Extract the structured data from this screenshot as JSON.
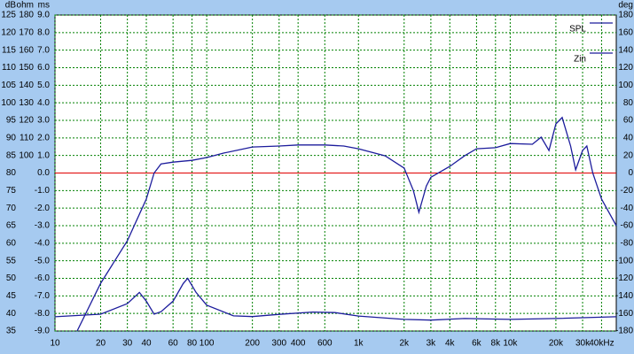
{
  "chart_data": {
    "type": "line",
    "axis_titles": {
      "y": "dB",
      "y2": "ohm",
      "y3": "ms",
      "y4": "deg"
    },
    "xscale": "log",
    "xlim": [
      10,
      50000
    ],
    "xticks": [
      10,
      20,
      30,
      40,
      60,
      80,
      100,
      200,
      300,
      400,
      600,
      {
        "value": 1000,
        "label": "1k"
      },
      {
        "value": 2000,
        "label": "2k"
      },
      {
        "value": 3000,
        "label": "3k"
      },
      {
        "value": 4000,
        "label": "4k"
      },
      {
        "value": 6000,
        "label": "6k"
      },
      {
        "value": 8000,
        "label": "8k"
      },
      {
        "value": 10000,
        "label": "10k"
      },
      {
        "value": 20000,
        "label": "20k"
      },
      {
        "value": 30000,
        "label": "30k"
      },
      {
        "value": 40000,
        "label": "40kHz"
      }
    ],
    "ylim": [
      35,
      125
    ],
    "yticks": [
      35,
      40,
      45,
      50,
      55,
      60,
      65,
      70,
      75,
      80,
      85,
      90,
      95,
      100,
      105,
      110,
      115,
      120,
      125
    ],
    "y2lim": [
      0,
      180
    ],
    "y2ticks": [
      100,
      110,
      120,
      130,
      140,
      150,
      160,
      170,
      180
    ],
    "y3lim": [
      -9,
      9
    ],
    "y3ticks": [
      {
        "value": -9,
        "label": "-9.0"
      },
      {
        "value": -8,
        "label": "-8.0"
      },
      {
        "value": -7,
        "label": "-7.0"
      },
      {
        "value": -6,
        "label": "-6.0"
      },
      {
        "value": -5,
        "label": "-5.0"
      },
      {
        "value": -4,
        "label": "-4.0"
      },
      {
        "value": -3,
        "label": "-3.0"
      },
      {
        "value": -2,
        "label": "-2.0"
      },
      {
        "value": -1,
        "label": "-1.0"
      },
      {
        "value": 0,
        "label": "0.0"
      },
      {
        "value": 1,
        "label": "1.0"
      },
      {
        "value": 2,
        "label": "2.0"
      },
      {
        "value": 3,
        "label": "3.0"
      },
      {
        "value": 4,
        "label": "4.0"
      },
      {
        "value": 5,
        "label": "5.0"
      },
      {
        "value": 6,
        "label": "6.0"
      },
      {
        "value": 7,
        "label": "7.0"
      },
      {
        "value": 8,
        "label": "8.0"
      },
      {
        "value": 9,
        "label": "9.0"
      }
    ],
    "y4lim": [
      -180,
      180
    ],
    "y4ticks": [
      -180,
      -160,
      -140,
      -120,
      -100,
      -80,
      -60,
      -40,
      -20,
      0,
      20,
      40,
      60,
      80,
      100,
      120,
      140,
      160,
      180
    ],
    "grid": true,
    "reference_line": {
      "value": 80,
      "color": "#e00000"
    },
    "legend": "top-right",
    "series": [
      {
        "name": "SPL",
        "color": "#1c1c9c",
        "x": [
          14,
          20,
          30,
          40,
          45,
          50,
          60,
          80,
          100,
          130,
          200,
          300,
          400,
          600,
          800,
          1000,
          1500,
          2000,
          2300,
          2500,
          2800,
          3000,
          4000,
          5000,
          6000,
          8000,
          10000,
          14000,
          16000,
          18000,
          20000,
          22000,
          25000,
          27000,
          30000,
          32000,
          35000,
          40000,
          50000
        ],
        "values": [
          35,
          48.6,
          60.7,
          72.6,
          80,
          82.6,
          83.1,
          83.6,
          84.4,
          85.7,
          87.4,
          87.7,
          88,
          88,
          87.7,
          86.9,
          84.9,
          81.4,
          75,
          68.8,
          76.3,
          78.8,
          81.9,
          84.9,
          86.9,
          87.2,
          88.4,
          88.2,
          90.2,
          86.4,
          94,
          95.8,
          87.7,
          80.9,
          86.4,
          87.7,
          80,
          72.6,
          65
        ]
      },
      {
        "name": "Zin",
        "color": "#1c1c9c",
        "axis": "y2",
        "x": [
          10,
          20,
          30,
          36,
          40,
          45,
          50,
          60,
          70,
          75,
          85,
          100,
          150,
          200,
          300,
          500,
          700,
          1000,
          2000,
          3000,
          5000,
          10000,
          20000,
          50000
        ],
        "values": [
          8.1,
          9.6,
          15.6,
          22,
          17,
          9.6,
          11,
          17,
          27,
          30,
          22,
          14.7,
          8.6,
          8.2,
          9.5,
          10.8,
          10.5,
          8.5,
          6.6,
          6.2,
          7.1,
          6.6,
          7.1,
          8.1
        ]
      }
    ]
  }
}
